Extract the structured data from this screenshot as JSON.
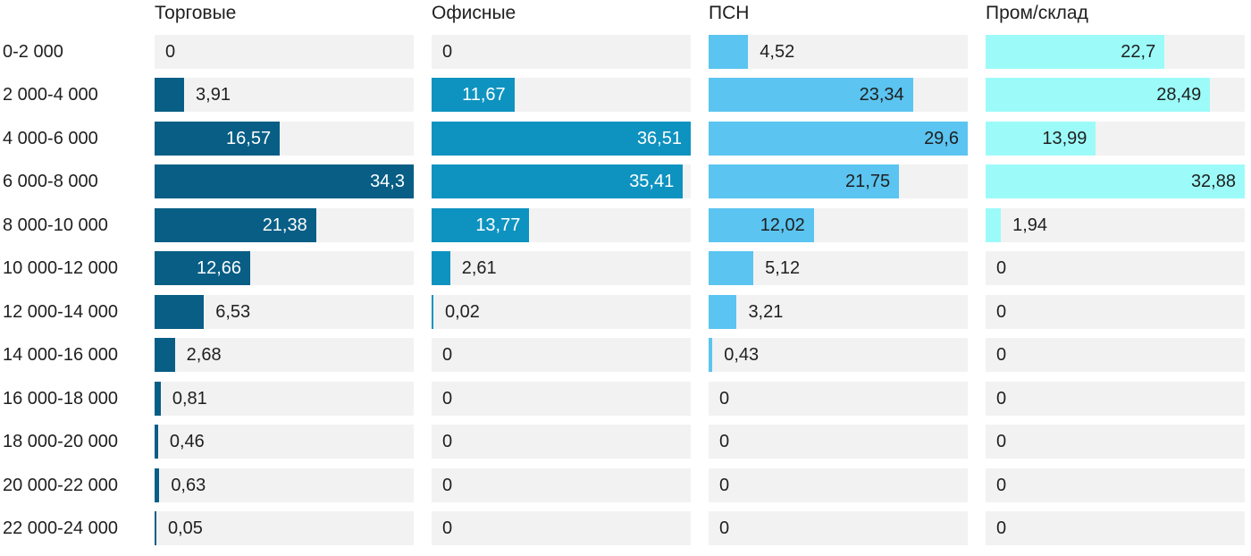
{
  "chart_data": {
    "type": "bar",
    "orientation": "horizontal",
    "layout": "small-multiples-4-columns",
    "scaling": "each series scaled to its own max value",
    "track_color": "#F2F2F2",
    "text_color": "#1F1F1F",
    "decimal_separator": ",",
    "categories": [
      "0-2 000",
      "2 000-4 000",
      "4 000-6 000",
      "6 000-8 000",
      "8 000-10 000",
      "10 000-12 000",
      "12 000-14 000",
      "14 000-16 000",
      "16 000-18 000",
      "18 000-20 000",
      "20 000-22 000",
      "22 000-24 000"
    ],
    "series": [
      {
        "name": "Торговые",
        "color": "#085E85",
        "inside_label_color": "#FFFFFF",
        "values": [
          0,
          3.91,
          16.57,
          34.3,
          21.38,
          12.66,
          6.53,
          2.68,
          0.81,
          0.46,
          0.63,
          0.05
        ]
      },
      {
        "name": "Офисные",
        "color": "#0E93C0",
        "inside_label_color": "#FFFFFF",
        "values": [
          0,
          11.67,
          36.51,
          35.41,
          13.77,
          2.61,
          0.02,
          0,
          0,
          0,
          0,
          0
        ]
      },
      {
        "name": "ПСН",
        "color": "#5BC4F0",
        "inside_label_color": "#1F1F1F",
        "values": [
          4.52,
          23.34,
          29.6,
          21.75,
          12.02,
          5.12,
          3.21,
          0.43,
          0,
          0,
          0,
          0
        ]
      },
      {
        "name": "Пром/склад",
        "color": "#9CFBF9",
        "inside_label_color": "#1F1F1F",
        "values": [
          22.7,
          28.49,
          13.99,
          32.88,
          1.94,
          0,
          0,
          0,
          0,
          0,
          0,
          0
        ]
      }
    ]
  }
}
